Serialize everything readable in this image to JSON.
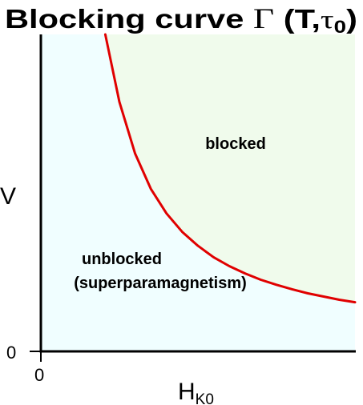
{
  "chart_data": {
    "type": "line",
    "title": {
      "prefix": "Blocking curve ",
      "gamma": "Γ",
      "open": " (T,",
      "tau": "τ",
      "tau_sub": "0",
      "close": ")"
    },
    "xlabel": {
      "main": "H",
      "sub": "K0"
    },
    "ylabel": "V",
    "x_tick": "0",
    "y_tick": "0",
    "regions": {
      "blocked": "blocked",
      "unblocked_line1": "unblocked",
      "unblocked_line2": "(superparamagnetism)"
    },
    "xlim": [
      0,
      1
    ],
    "ylim": [
      0,
      1
    ],
    "series": [
      {
        "x": [
          0.205,
          0.25,
          0.3,
          0.35,
          0.4,
          0.45,
          0.5,
          0.55,
          0.6,
          0.65,
          0.7,
          0.75,
          0.8,
          0.85,
          0.9,
          0.95,
          1.0
        ],
        "values": [
          1.0,
          0.787,
          0.624,
          0.513,
          0.435,
          0.377,
          0.333,
          0.297,
          0.269,
          0.246,
          0.226,
          0.21,
          0.196,
          0.183,
          0.173,
          0.163,
          0.155
        ]
      }
    ],
    "grid": false,
    "colors": {
      "curve": "#e00000",
      "blocked_fill": "#f0fbec",
      "unblocked_fill": "#f0feff",
      "axis": "#000000"
    }
  }
}
